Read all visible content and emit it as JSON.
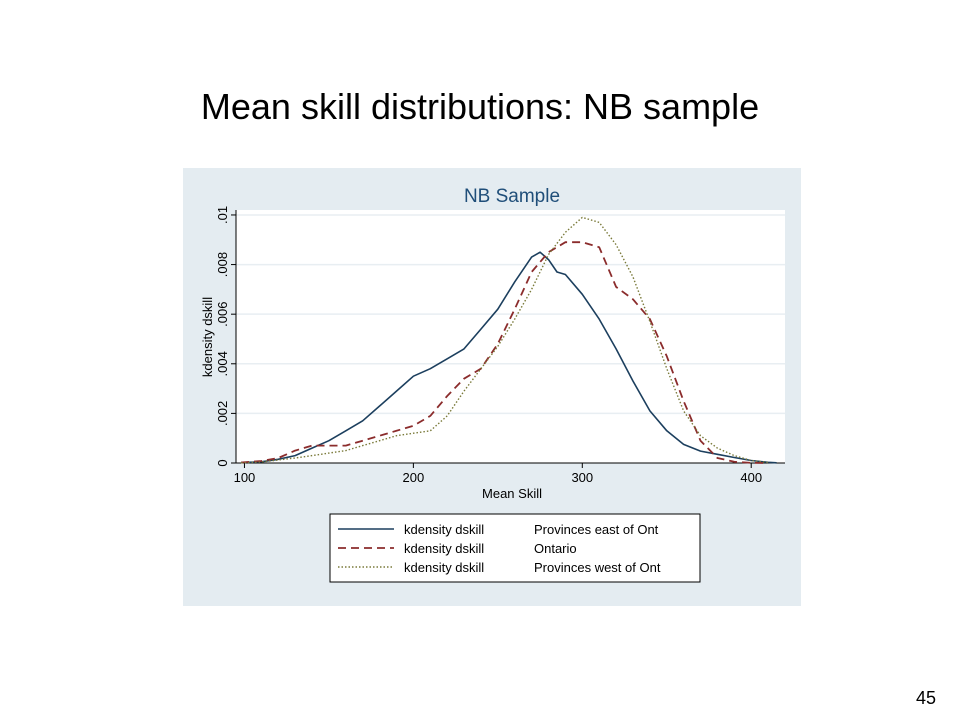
{
  "slide": {
    "title": "Mean skill distributions: NB sample",
    "page_number": "45"
  },
  "colors": {
    "panel_background": "#e4ecf1",
    "plot_background": "#ffffff",
    "grid": "#e8eef2",
    "title_color": "#1f4e79",
    "series_east": "#1c3f5e",
    "series_ontario": "#8b2c2c",
    "series_west": "#7a7a3a"
  },
  "chart_data": {
    "type": "line",
    "title": "NB Sample",
    "xlabel": "Mean Skill",
    "ylabel": "kdensity dskill",
    "xlim": [
      95,
      420
    ],
    "ylim": [
      0,
      0.0102
    ],
    "xticks": [
      100,
      200,
      300,
      400
    ],
    "xtick_labels": [
      "100",
      "200",
      "300",
      "400"
    ],
    "yticks": [
      0,
      0.002,
      0.004,
      0.006,
      0.008,
      0.01
    ],
    "ytick_labels": [
      "0",
      ".002",
      ".004",
      ".006",
      ".008",
      ".01"
    ],
    "grid": true,
    "legend_position": "bottom",
    "series": [
      {
        "name": "Provinces east of Ont",
        "legend_left": "kdensity dskill",
        "style": "solid",
        "points": [
          [
            98,
            2e-05
          ],
          [
            110,
            5e-05
          ],
          [
            120,
            0.00015
          ],
          [
            130,
            0.0003
          ],
          [
            140,
            0.0006
          ],
          [
            150,
            0.0009
          ],
          [
            160,
            0.0013
          ],
          [
            170,
            0.0017
          ],
          [
            180,
            0.0023
          ],
          [
            190,
            0.0029
          ],
          [
            200,
            0.0035
          ],
          [
            210,
            0.0038
          ],
          [
            220,
            0.0042
          ],
          [
            230,
            0.0046
          ],
          [
            240,
            0.0054
          ],
          [
            250,
            0.0062
          ],
          [
            260,
            0.0073
          ],
          [
            270,
            0.0083
          ],
          [
            275,
            0.0085
          ],
          [
            280,
            0.0082
          ],
          [
            285,
            0.0077
          ],
          [
            290,
            0.0076
          ],
          [
            300,
            0.0068
          ],
          [
            310,
            0.0058
          ],
          [
            320,
            0.0046
          ],
          [
            330,
            0.0033
          ],
          [
            340,
            0.0021
          ],
          [
            350,
            0.0013
          ],
          [
            360,
            0.00075
          ],
          [
            370,
            0.00048
          ],
          [
            380,
            0.00035
          ],
          [
            390,
            0.00022
          ],
          [
            400,
            0.0001
          ],
          [
            410,
            3e-05
          ],
          [
            415,
            1e-05
          ]
        ]
      },
      {
        "name": "Ontario",
        "legend_left": "kdensity dskill",
        "style": "dashed",
        "points": [
          [
            98,
            2e-05
          ],
          [
            110,
            8e-05
          ],
          [
            120,
            0.0002
          ],
          [
            130,
            0.0005
          ],
          [
            140,
            0.0007
          ],
          [
            150,
            0.0007
          ],
          [
            160,
            0.0007
          ],
          [
            170,
            0.0009
          ],
          [
            180,
            0.0011
          ],
          [
            190,
            0.0013
          ],
          [
            200,
            0.0015
          ],
          [
            210,
            0.0019
          ],
          [
            220,
            0.0027
          ],
          [
            230,
            0.0034
          ],
          [
            240,
            0.0038
          ],
          [
            250,
            0.0048
          ],
          [
            260,
            0.0062
          ],
          [
            270,
            0.0077
          ],
          [
            280,
            0.0085
          ],
          [
            290,
            0.0089
          ],
          [
            300,
            0.0089
          ],
          [
            310,
            0.0087
          ],
          [
            320,
            0.0071
          ],
          [
            330,
            0.0066
          ],
          [
            340,
            0.0058
          ],
          [
            350,
            0.0043
          ],
          [
            360,
            0.0025
          ],
          [
            370,
            0.0009
          ],
          [
            380,
            0.0002
          ],
          [
            390,
            5e-05
          ],
          [
            400,
            1e-05
          ],
          [
            410,
            0
          ]
        ]
      },
      {
        "name": "Provinces west of Ont",
        "legend_left": "kdensity dskill",
        "style": "dotted",
        "points": [
          [
            98,
            1e-05
          ],
          [
            110,
            4e-05
          ],
          [
            120,
            0.00012
          ],
          [
            130,
            0.0002
          ],
          [
            140,
            0.0003
          ],
          [
            150,
            0.0004
          ],
          [
            160,
            0.0005
          ],
          [
            170,
            0.0007
          ],
          [
            180,
            0.0009
          ],
          [
            190,
            0.0011
          ],
          [
            200,
            0.0012
          ],
          [
            210,
            0.0013
          ],
          [
            220,
            0.0019
          ],
          [
            230,
            0.0029
          ],
          [
            240,
            0.0038
          ],
          [
            250,
            0.0047
          ],
          [
            260,
            0.0058
          ],
          [
            270,
            0.007
          ],
          [
            280,
            0.0084
          ],
          [
            290,
            0.0093
          ],
          [
            300,
            0.0099
          ],
          [
            310,
            0.0097
          ],
          [
            320,
            0.0088
          ],
          [
            330,
            0.0075
          ],
          [
            340,
            0.0057
          ],
          [
            350,
            0.0038
          ],
          [
            360,
            0.0021
          ],
          [
            370,
            0.0011
          ],
          [
            380,
            0.0006
          ],
          [
            390,
            0.0003
          ],
          [
            400,
            0.0001
          ],
          [
            410,
            2e-05
          ]
        ]
      }
    ]
  }
}
